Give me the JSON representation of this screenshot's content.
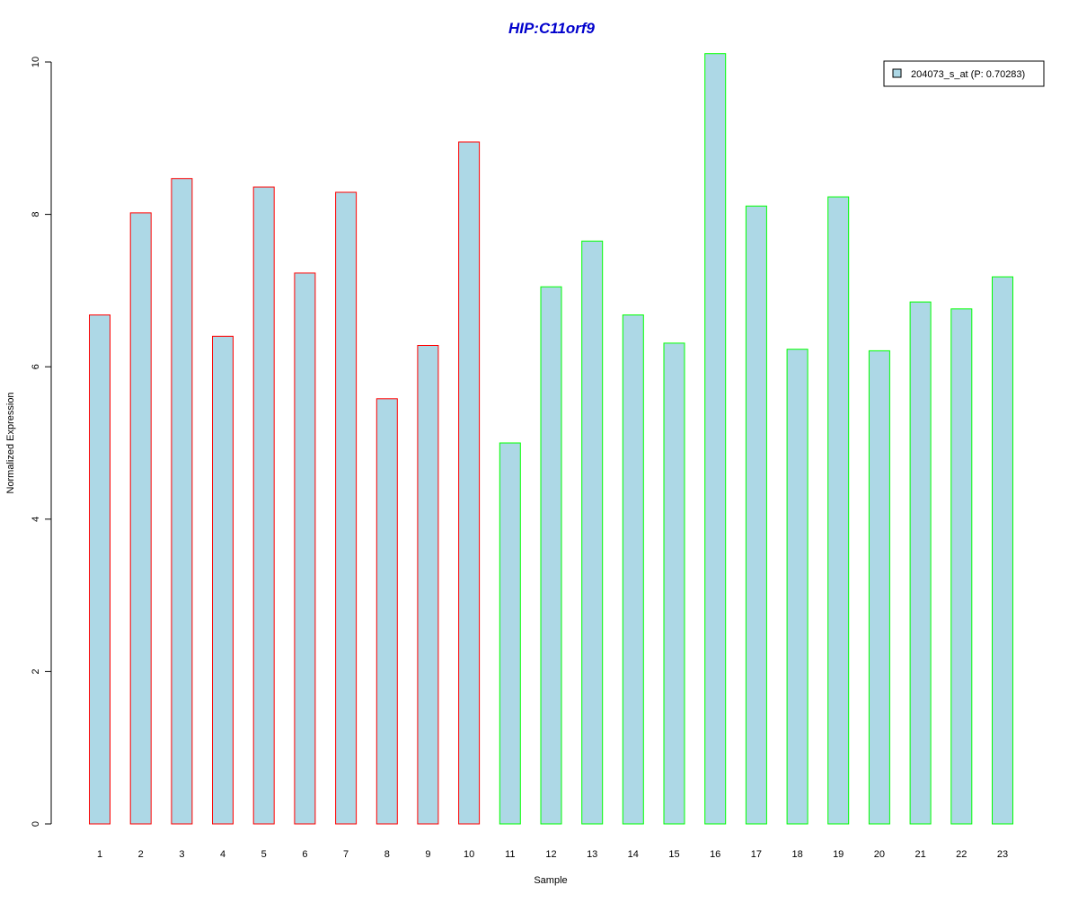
{
  "chart_data": {
    "type": "bar",
    "title": "HIP:C11orf9",
    "xlabel": "Sample",
    "ylabel": "Normalized Expression",
    "categories": [
      "1",
      "2",
      "3",
      "4",
      "5",
      "6",
      "7",
      "8",
      "9",
      "10",
      "11",
      "12",
      "13",
      "14",
      "15",
      "16",
      "17",
      "18",
      "19",
      "20",
      "21",
      "22",
      "23"
    ],
    "series": [
      {
        "name": "204073_s_at (P: 0.70283)",
        "values": [
          6.68,
          8.02,
          8.47,
          6.4,
          8.36,
          7.23,
          8.29,
          5.58,
          6.28,
          8.95,
          5.0,
          7.05,
          7.65,
          6.68,
          6.31,
          10.11,
          8.11,
          6.23,
          8.23,
          6.21,
          6.85,
          6.76,
          7.18
        ]
      }
    ],
    "yticks": [
      "0",
      "2",
      "4",
      "6",
      "8",
      "10"
    ],
    "ylim": [
      0,
      10
    ],
    "grid": false,
    "legend_position": "top-right",
    "colors": {
      "bar_fill": "#add8e6",
      "group1_border": "#ff0000",
      "group2_border": "#00ff00",
      "title": "#0000cc"
    },
    "border_groups": [
      "group1",
      "group1",
      "group1",
      "group1",
      "group1",
      "group1",
      "group1",
      "group1",
      "group1",
      "group1",
      "group2",
      "group2",
      "group2",
      "group2",
      "group2",
      "group2",
      "group2",
      "group2",
      "group2",
      "group2",
      "group2",
      "group2",
      "group2"
    ]
  }
}
